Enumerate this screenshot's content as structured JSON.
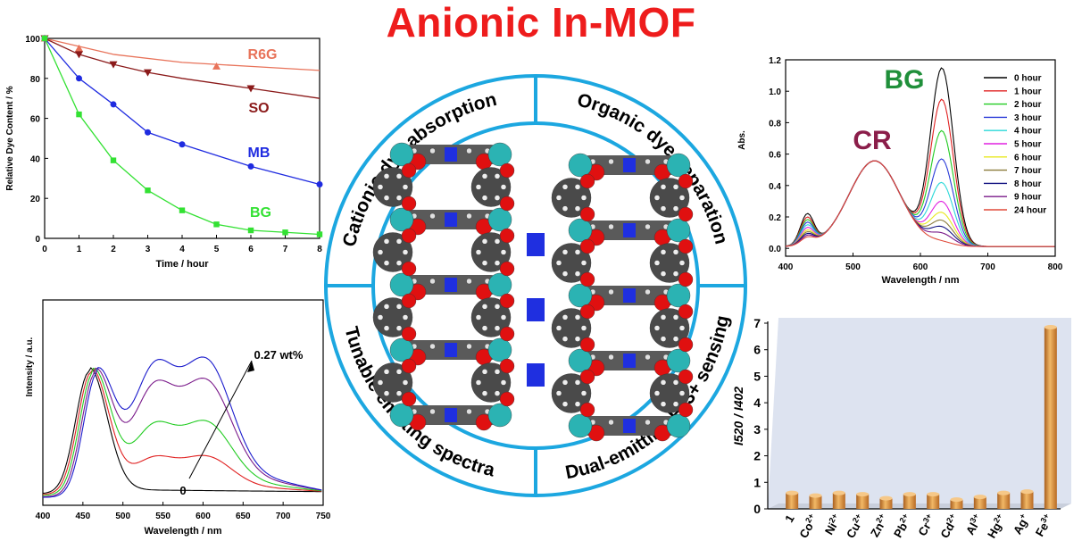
{
  "title": "Anionic In-MOF",
  "wheel_labels": {
    "top_left": "Cationic dye absorption",
    "top_right": "Organic dye separation",
    "bottom_left": "Tunable emitting spectra",
    "bottom_right": "Dual-emitting Fe3+ sensing"
  },
  "chart_data": [
    {
      "type": "line",
      "id": "dye-absorption-kinetics",
      "xlabel": "Time / hour",
      "ylabel": "Relative Dye Content / %",
      "xlim": [
        0,
        8
      ],
      "ylim": [
        0,
        100
      ],
      "xticks": [
        "0",
        "1",
        "2",
        "3",
        "4",
        "5",
        "6",
        "7",
        "8"
      ],
      "yticks": [
        "0",
        "20",
        "40",
        "60",
        "80",
        "100"
      ],
      "series": [
        {
          "name": "R6G",
          "color": "#e8735a",
          "marker": "triangle-up",
          "x": [
            0,
            1,
            5
          ],
          "y": [
            100,
            95,
            86
          ],
          "fit": [
            [
              0,
              100
            ],
            [
              2,
              92
            ],
            [
              4,
              88
            ],
            [
              6,
              86
            ],
            [
              8,
              84
            ]
          ]
        },
        {
          "name": "SO",
          "color": "#8b1a1a",
          "marker": "triangle-down",
          "x": [
            0,
            1,
            2,
            3,
            6
          ],
          "y": [
            100,
            92,
            87,
            83,
            75
          ],
          "fit": [
            [
              0,
              100
            ],
            [
              1,
              92
            ],
            [
              2,
              87
            ],
            [
              3,
              83
            ],
            [
              4,
              80
            ],
            [
              6,
              75
            ],
            [
              8,
              70
            ]
          ]
        },
        {
          "name": "MB",
          "color": "#1f2be0",
          "marker": "circle",
          "x": [
            0,
            1,
            2,
            3,
            4,
            6,
            8
          ],
          "y": [
            100,
            80,
            67,
            53,
            47,
            36,
            27
          ],
          "fit": null
        },
        {
          "name": "BG",
          "color": "#33e133",
          "marker": "square",
          "x": [
            0,
            1,
            2,
            3,
            4,
            5,
            6,
            7,
            8
          ],
          "y": [
            100,
            62,
            39,
            24,
            14,
            7,
            4,
            3,
            2
          ],
          "fit": null
        }
      ]
    },
    {
      "type": "line",
      "id": "uv-vis-absorption",
      "xlabel": "Wavelength / nm",
      "ylabel": "Abs.",
      "xlim": [
        400,
        800
      ],
      "ylim": [
        0,
        1.2
      ],
      "xticks": [
        "400",
        "500",
        "600",
        "700",
        "800"
      ],
      "yticks": [
        "0.0",
        "0.2",
        "0.4",
        "0.6",
        "0.8",
        "1.0",
        "1.2"
      ],
      "annotations": [
        "BG",
        "CR"
      ],
      "annotation_colors": [
        "#1f8f3a",
        "#8b1e4a"
      ],
      "legend_position": "top-right",
      "series": [
        {
          "name": "0 hour",
          "color": "#000000",
          "bg": 1.12,
          "s": 0.35
        },
        {
          "name": "1 hour",
          "color": "#e02020",
          "bg": 0.92,
          "s": 0.31
        },
        {
          "name": "2 hour",
          "color": "#22cc22",
          "bg": 0.72,
          "s": 0.28
        },
        {
          "name": "3 hour",
          "color": "#2a3bd8",
          "bg": 0.54,
          "s": 0.25
        },
        {
          "name": "4 hour",
          "color": "#2ad8d8",
          "bg": 0.39,
          "s": 0.22
        },
        {
          "name": "5 hour",
          "color": "#e020e0",
          "bg": 0.27,
          "s": 0.19
        },
        {
          "name": "6 hour",
          "color": "#e8e820",
          "bg": 0.2,
          "s": 0.16
        },
        {
          "name": "7 hour",
          "color": "#8a7a3a",
          "bg": 0.15,
          "s": 0.14
        },
        {
          "name": "8 hour",
          "color": "#101080",
          "bg": 0.11,
          "s": 0.12
        },
        {
          "name": "9 hour",
          "color": "#7a1a8a",
          "bg": 0.07,
          "s": 0.1
        },
        {
          "name": "24 hour",
          "color": "#e04a3a",
          "bg": 0.02,
          "s": 0.08
        }
      ]
    },
    {
      "type": "line",
      "id": "tunable-emission",
      "xlabel": "Wavelength / nm",
      "ylabel": "Intensity / a.u.",
      "xlim": [
        400,
        750
      ],
      "xticks": [
        "400",
        "450",
        "500",
        "550",
        "600",
        "650",
        "700",
        "750"
      ],
      "annotations": [
        "0.27 wt%",
        "0"
      ],
      "series": [
        {
          "color": "#000000",
          "g": 0.0
        },
        {
          "color": "#e02020",
          "g": 0.25
        },
        {
          "color": "#22cc22",
          "g": 0.5
        },
        {
          "color": "#7a1a8a",
          "g": 0.8
        },
        {
          "color": "#1a1acc",
          "g": 0.95
        }
      ]
    },
    {
      "type": "bar",
      "id": "fe3-sensing",
      "ylabel": "I520 / I402",
      "ylim": [
        0,
        7
      ],
      "yticks": [
        "0",
        "1",
        "2",
        "3",
        "4",
        "5",
        "6",
        "7"
      ],
      "categories": [
        {
          "base": "1",
          "sup": ""
        },
        {
          "base": "Co",
          "sup": "2+"
        },
        {
          "base": "Ni",
          "sup": "2+"
        },
        {
          "base": "Cu",
          "sup": "2+"
        },
        {
          "base": "Zn",
          "sup": "2+"
        },
        {
          "base": "Pb",
          "sup": "2+"
        },
        {
          "base": "Cr",
          "sup": "3+"
        },
        {
          "base": "Cd",
          "sup": "2+"
        },
        {
          "base": "Al",
          "sup": "3+"
        },
        {
          "base": "Hg",
          "sup": "2+"
        },
        {
          "base": "Ag",
          "sup": "+"
        },
        {
          "base": "Fe",
          "sup": "3+"
        }
      ],
      "values": [
        0.6,
        0.5,
        0.6,
        0.55,
        0.4,
        0.55,
        0.55,
        0.35,
        0.45,
        0.6,
        0.65,
        6.85
      ],
      "bar_color": "#d98b3a"
    }
  ]
}
